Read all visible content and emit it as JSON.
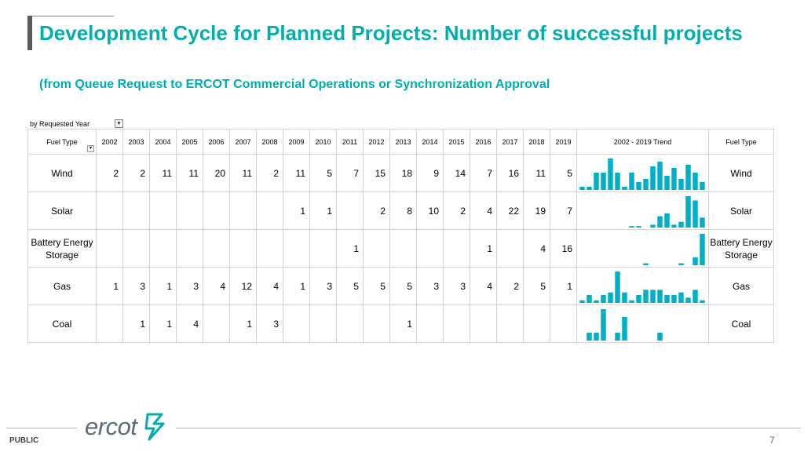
{
  "slide": {
    "title": "Development Cycle for Planned Projects: Number of successful projects",
    "subtitle": "(from Queue Request to ERCOT Commercial Operations or Synchronization Approval",
    "footer_label": "PUBLIC",
    "page_number": "7",
    "logo_text": "ercot"
  },
  "pivot": {
    "filter_label": "by Requested Year",
    "header_left": "Fuel Type",
    "header_right": "Fuel Type",
    "trend_header": "2002 - 2019 Trend",
    "years": [
      "2002",
      "2003",
      "2004",
      "2005",
      "2006",
      "2007",
      "2008",
      "2009",
      "2010",
      "2011",
      "2012",
      "2013",
      "2014",
      "2015",
      "2016",
      "2017",
      "2018",
      "2019"
    ],
    "rows": [
      {
        "label": "Wind",
        "right_label": "Wind",
        "cells": [
          "2",
          "2",
          "11",
          "11",
          "20",
          "11",
          "2",
          "11",
          "5",
          "7",
          "15",
          "18",
          "9",
          "14",
          "7",
          "16",
          "11",
          "5"
        ]
      },
      {
        "label": "Solar",
        "right_label": "Solar",
        "cells": [
          "",
          "",
          "",
          "",
          "",
          "",
          "",
          "1",
          "1",
          "",
          "2",
          "8",
          "10",
          "2",
          "4",
          "22",
          "19",
          "7"
        ]
      },
      {
        "label": "Battery Energy Storage",
        "right_label": "Battery Energy Storage",
        "cells": [
          "",
          "",
          "",
          "",
          "",
          "",
          "",
          "",
          "",
          "1",
          "",
          "",
          "",
          "",
          "1",
          "",
          "4",
          "16"
        ]
      },
      {
        "label": "Gas",
        "right_label": "Gas",
        "cells": [
          "1",
          "3",
          "1",
          "3",
          "4",
          "12",
          "4",
          "1",
          "3",
          "5",
          "5",
          "5",
          "3",
          "3",
          "4",
          "2",
          "5",
          "1"
        ]
      },
      {
        "label": "Coal",
        "right_label": "Coal",
        "cells": [
          "",
          "1",
          "1",
          "4",
          "",
          "1",
          "3",
          "",
          "",
          "",
          "",
          "1",
          "",
          "",
          "",
          "",
          "",
          ""
        ]
      }
    ]
  },
  "colors": {
    "accent": "#00aeb0",
    "spark": "#00b0c8"
  }
}
